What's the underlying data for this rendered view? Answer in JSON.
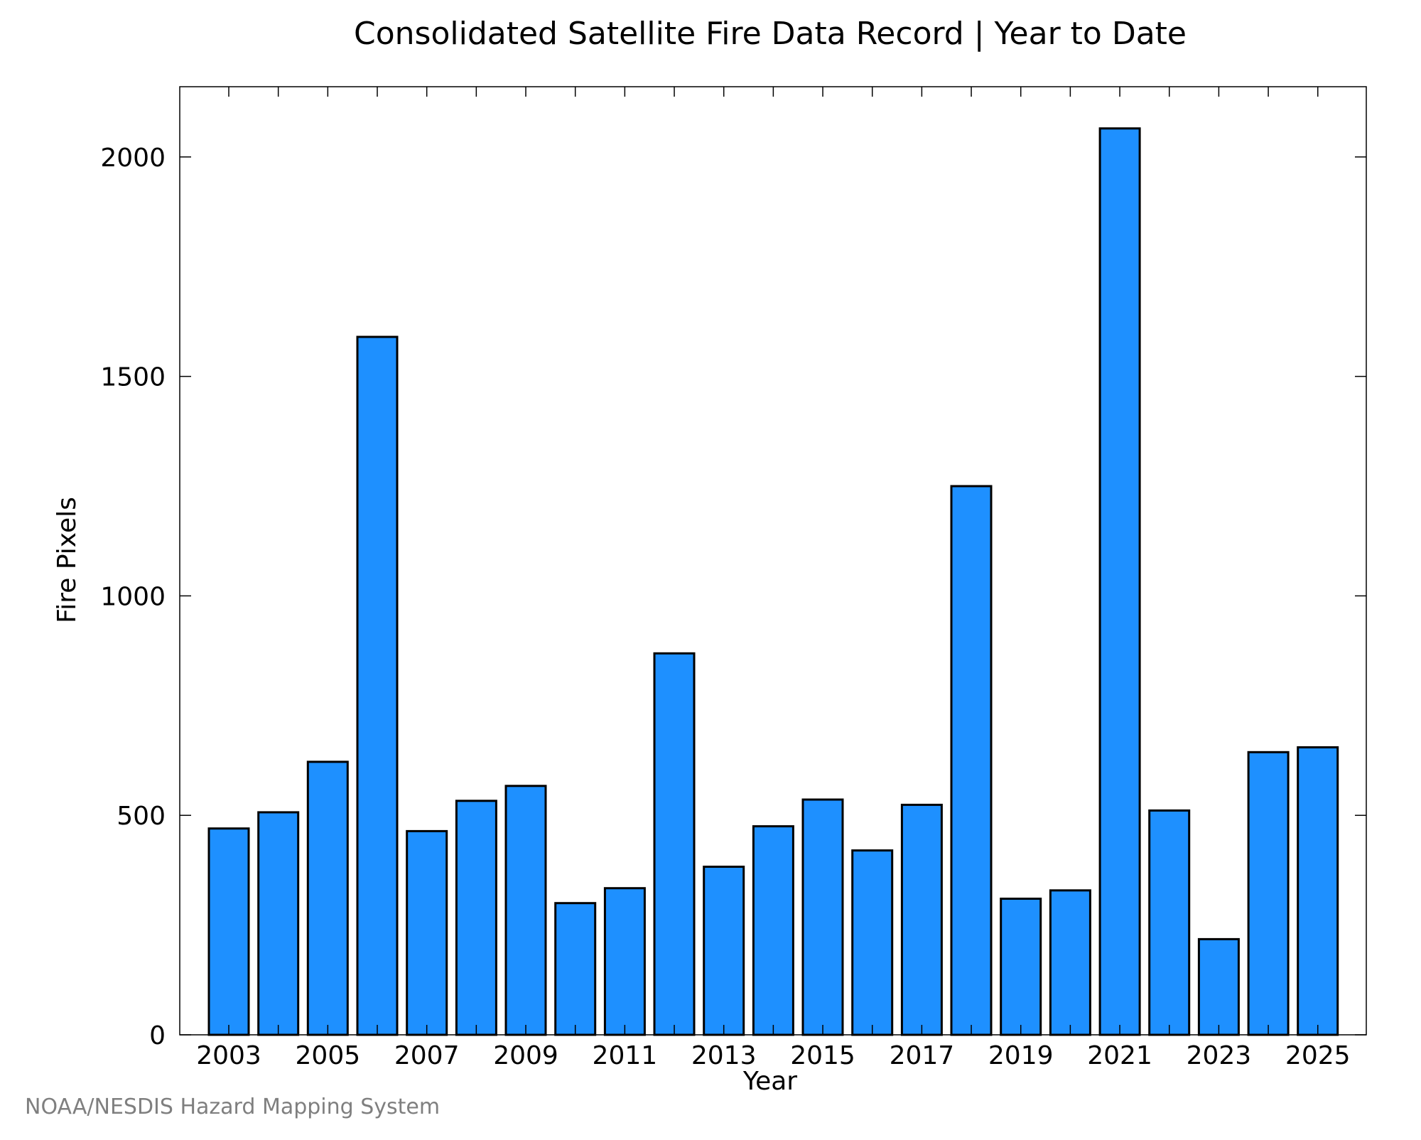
{
  "chart_data": {
    "type": "bar",
    "title": "Consolidated Satellite Fire Data Record | Year to Date",
    "xlabel": "Year",
    "ylabel": "Fire Pixels",
    "categories": [
      "2003",
      "2004",
      "2005",
      "2006",
      "2007",
      "2008",
      "2009",
      "2010",
      "2011",
      "2012",
      "2013",
      "2014",
      "2015",
      "2016",
      "2017",
      "2018",
      "2019",
      "2020",
      "2021",
      "2022",
      "2023",
      "2024",
      "2025"
    ],
    "x_tick_labels": [
      "2003",
      "2005",
      "2007",
      "2009",
      "2011",
      "2013",
      "2015",
      "2017",
      "2019",
      "2021",
      "2023",
      "2025"
    ],
    "values": [
      470,
      507,
      622,
      1590,
      464,
      533,
      567,
      300,
      334,
      869,
      383,
      475,
      536,
      420,
      524,
      1250,
      310,
      329,
      2065,
      511,
      218,
      644,
      655
    ],
    "ylim": [
      0,
      2160
    ],
    "y_ticks": [
      0,
      500,
      1000,
      1500,
      2000
    ],
    "bar_color": "#1e90ff",
    "bar_edge_color": "#000000",
    "grid": false,
    "legend": "none"
  },
  "credit": "NOAA/NESDIS Hazard Mapping System"
}
